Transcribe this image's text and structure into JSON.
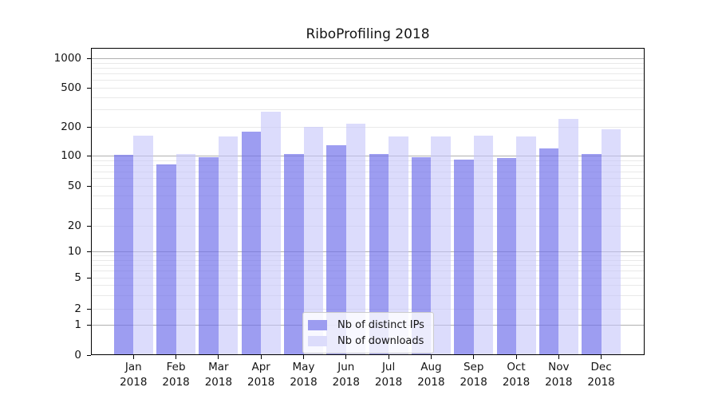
{
  "title": "RiboProfiling 2018",
  "chart_data": {
    "type": "bar",
    "title": "RiboProfiling 2018",
    "categories": [
      "Jan 2018",
      "Feb 2018",
      "Mar 2018",
      "Apr 2018",
      "May 2018",
      "Jun 2018",
      "Jul 2018",
      "Aug 2018",
      "Sep 2018",
      "Oct 2018",
      "Nov 2018",
      "Dec 2018"
    ],
    "series": [
      {
        "name": "Nb of distinct IPs",
        "swatch_color": "#9c9cf0",
        "fill_color": "rgba(110,110,235,0.68)",
        "values": [
          101,
          82,
          97,
          178,
          104,
          128,
          103,
          97,
          91,
          94,
          119,
          103
        ]
      },
      {
        "name": "Nb of downloads",
        "swatch_color": "#dcdcfb",
        "fill_color": "rgba(195,195,250,0.58)",
        "values": [
          162,
          104,
          160,
          285,
          201,
          217,
          160,
          158,
          162,
          159,
          242,
          188
        ]
      }
    ],
    "xlabel": "",
    "ylabel": "",
    "yscale": "symlog-like",
    "y_ticks": [
      1000,
      500,
      200,
      100,
      50,
      20,
      10,
      5,
      2,
      1,
      0
    ],
    "ylim": [
      0,
      1230
    ],
    "grid": "both",
    "grid_major_color": "#b0b0b0",
    "grid_minor_color": "#e9e9e9",
    "legend_position": "lower center"
  }
}
